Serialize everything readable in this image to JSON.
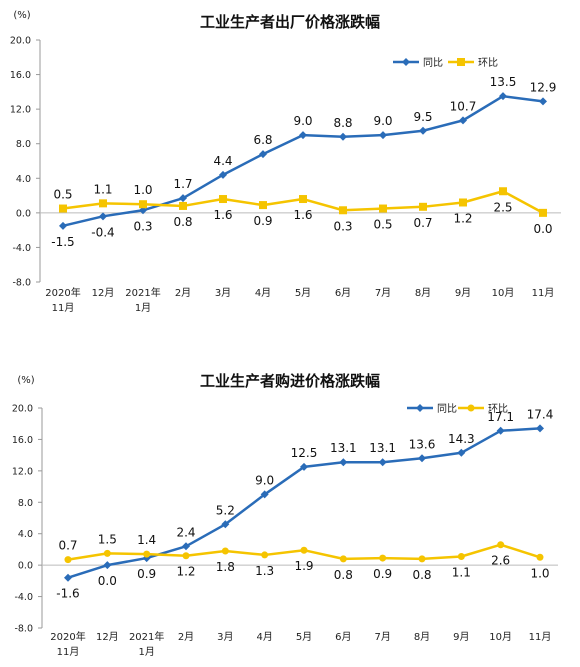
{
  "chart_data": [
    {
      "type": "line",
      "title": "工业生产者出厂价格涨跌幅",
      "unit_label": "(%)",
      "categories": [
        [
          "2020年",
          "11月"
        ],
        [
          "12月"
        ],
        [
          "2021年",
          "1月"
        ],
        [
          "2月"
        ],
        [
          "3月"
        ],
        [
          "4月"
        ],
        [
          "5月"
        ],
        [
          "6月"
        ],
        [
          "7月"
        ],
        [
          "8月"
        ],
        [
          "9月"
        ],
        [
          "10月"
        ],
        [
          "11月"
        ]
      ],
      "y_ticks": [
        "20.0",
        "16.0",
        "12.0",
        "8.0",
        "4.0",
        "0.0",
        "-4.0",
        "-8.0"
      ],
      "ylim": [
        -8,
        20
      ],
      "grid": false,
      "legend_position": "top-right",
      "series": [
        {
          "name": "同比",
          "color": "#2a6cb8",
          "marker": "diamond",
          "values": [
            -1.5,
            -0.4,
            0.3,
            1.7,
            4.4,
            6.8,
            9.0,
            8.8,
            9.0,
            9.5,
            10.7,
            13.5,
            12.9
          ],
          "labels": [
            "-1.5",
            "-0.4",
            "0.3",
            "1.7",
            "4.4",
            "6.8",
            "9.0",
            "8.8",
            "9.0",
            "9.5",
            "10.7",
            "13.5",
            "12.9"
          ],
          "label_sides": [
            "below",
            "below",
            "below",
            "above",
            "above",
            "above",
            "above",
            "above",
            "above",
            "above",
            "above",
            "above",
            "above"
          ]
        },
        {
          "name": "环比",
          "color": "#f5c400",
          "marker": "square",
          "values": [
            0.5,
            1.1,
            1.0,
            0.8,
            1.6,
            0.9,
            1.6,
            0.3,
            0.5,
            0.7,
            1.2,
            2.5,
            0.0
          ],
          "labels": [
            "0.5",
            "1.1",
            "1.0",
            "0.8",
            "1.6",
            "0.9",
            "1.6",
            "0.3",
            "0.5",
            "0.7",
            "1.2",
            "2.5",
            "0.0"
          ],
          "label_sides": [
            "above",
            "above",
            "above",
            "below",
            "below",
            "below",
            "below",
            "below",
            "below",
            "below",
            "below",
            "below",
            "below"
          ]
        }
      ]
    },
    {
      "type": "line",
      "title": "工业生产者购进价格涨跌幅",
      "unit_label": "(%)",
      "categories": [
        [
          "2020年",
          "11月"
        ],
        [
          "12月"
        ],
        [
          "2021年",
          "1月"
        ],
        [
          "2月"
        ],
        [
          "3月"
        ],
        [
          "4月"
        ],
        [
          "5月"
        ],
        [
          "6月"
        ],
        [
          "7月"
        ],
        [
          "8月"
        ],
        [
          "9月"
        ],
        [
          "10月"
        ],
        [
          "11月"
        ]
      ],
      "y_ticks": [
        "20.0",
        "16.0",
        "12.0",
        "8.0",
        "4.0",
        "0.0",
        "-4.0",
        "-8.0"
      ],
      "ylim": [
        -8,
        20
      ],
      "grid": false,
      "legend_position": "top-right",
      "series": [
        {
          "name": "同比",
          "color": "#2a6cb8",
          "marker": "diamond",
          "values": [
            -1.6,
            0.0,
            0.9,
            2.4,
            5.2,
            9.0,
            12.5,
            13.1,
            13.1,
            13.6,
            14.3,
            17.1,
            17.4
          ],
          "labels": [
            "-1.6",
            "0.0",
            "0.9",
            "2.4",
            "5.2",
            "9.0",
            "12.5",
            "13.1",
            "13.1",
            "13.6",
            "14.3",
            "17.1",
            "17.4"
          ],
          "label_sides": [
            "below",
            "below",
            "below",
            "above",
            "above",
            "above",
            "above",
            "above",
            "above",
            "above",
            "above",
            "above",
            "above"
          ]
        },
        {
          "name": "环比",
          "color": "#f5c400",
          "marker": "circle",
          "values": [
            0.7,
            1.5,
            1.4,
            1.2,
            1.8,
            1.3,
            1.9,
            0.8,
            0.9,
            0.8,
            1.1,
            2.6,
            1.0
          ],
          "labels": [
            "0.7",
            "1.5",
            "1.4",
            "1.2",
            "1.8",
            "1.3",
            "1.9",
            "0.8",
            "0.9",
            "0.8",
            "1.1",
            "2.6",
            "1.0"
          ],
          "label_sides": [
            "above",
            "above",
            "above",
            "below",
            "below",
            "below",
            "below",
            "below",
            "below",
            "below",
            "below",
            "below",
            "below"
          ]
        }
      ]
    }
  ]
}
